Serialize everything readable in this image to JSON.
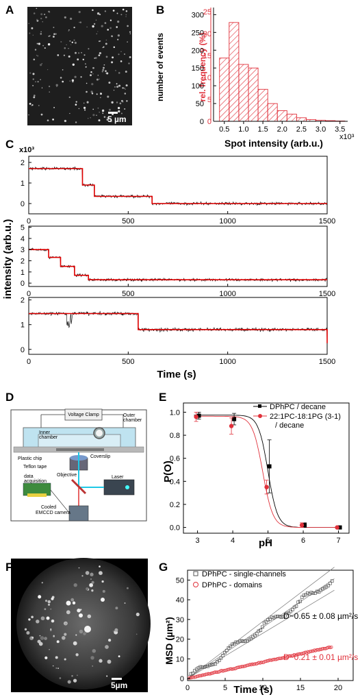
{
  "panels": {
    "A": {
      "label": "A",
      "scale_bar": "5 µm"
    },
    "B": {
      "label": "B",
      "ylabel_left": "number of events",
      "ylabel_right": "rel. frequency (%)",
      "xlabel": "Spot intensity (arb.u.)",
      "x_multiplier": "x10³",
      "x_ticks": [
        "0.5",
        "1.0",
        "1.5",
        "2.0",
        "2.5",
        "3.0",
        "3.5"
      ],
      "y_ticks_left": [
        "0",
        "50",
        "100",
        "150",
        "200",
        "250",
        "300"
      ],
      "y_ticks_right": [
        "0",
        "5",
        "10",
        "15",
        "20",
        "25"
      ],
      "colors": {
        "bars": "#e0303a",
        "right_axis": "#e0303a"
      }
    },
    "C": {
      "label": "C",
      "y_multiplier": "x10³",
      "ylabel": "intensity (arb.u.)",
      "xlabel": "Time (s)",
      "x_ticks": [
        "0",
        "500",
        "1000",
        "1500"
      ],
      "top_y_ticks": [
        "0",
        "1",
        "2"
      ],
      "mid_y_ticks": [
        "0",
        "1",
        "2",
        "3",
        "4",
        "5"
      ],
      "bot_y_ticks": [
        "0",
        "1",
        "2"
      ],
      "colors": {
        "trace": "#000000",
        "fit": "#e00000"
      }
    },
    "D": {
      "label": "D",
      "labels": {
        "voltage_clamp": "Voltage Clamp",
        "outer_chamber": "Outer chamber",
        "inner_chamber": "Inner chamber",
        "plastic_chip": "Plastic chip",
        "coverslip": "Coverslip",
        "teflon_tape": "Teflon tape",
        "objective": "Objective",
        "laser": "Laser",
        "data_acquisition": "data acquisition",
        "camera": "Cooled EMCCD camera"
      }
    },
    "E": {
      "label": "E",
      "ylabel": "P(O)",
      "xlabel": "pH",
      "x_ticks": [
        "3",
        "4",
        "5",
        "6",
        "7"
      ],
      "y_ticks": [
        "0.0",
        "0.2",
        "0.4",
        "0.6",
        "0.8",
        "1.0"
      ],
      "legend": [
        "DPhPC / decane",
        "22:1PC-18:1PG (3-1)",
        "/ decane"
      ],
      "colors": {
        "s1": "#000000",
        "s2": "#e0303a"
      }
    },
    "F": {
      "label": "F",
      "scale_bar": "5µm"
    },
    "G": {
      "label": "G",
      "ylabel": "MSD (µm²)",
      "xlabel": "Time (s)",
      "x_ticks": [
        "0",
        "5",
        "10",
        "15",
        "20"
      ],
      "y_ticks": [
        "0",
        "10",
        "20",
        "30",
        "40",
        "50"
      ],
      "legend": [
        "DPhPC - single-channels",
        "DPhPC - domains"
      ],
      "anno_black": "D~0.65 ± 0.08 µm²/s",
      "anno_red": "D~0.21 ± 0.01 µm²/s",
      "colors": {
        "s1": "#555555",
        "s2": "#e0303a"
      }
    }
  },
  "chart_data": [
    {
      "type": "bar",
      "id": "B",
      "categories": [
        "0.5",
        "0.75",
        "1.0",
        "1.25",
        "1.5",
        "1.75",
        "2.0",
        "2.25",
        "2.5",
        "2.75",
        "3.0",
        "3.25",
        "3.5"
      ],
      "values": [
        178,
        278,
        160,
        150,
        90,
        50,
        30,
        20,
        10,
        5,
        3,
        2,
        1
      ],
      "xlabel": "Spot intensity (arb.u.)",
      "ylabel": "number of events",
      "ylim": [
        0,
        320
      ]
    },
    {
      "type": "line",
      "id": "C-top",
      "x": [
        0,
        250,
        270,
        330,
        620,
        1500
      ],
      "y": [
        1.7,
        1.7,
        0.9,
        0.35,
        0.0,
        0.0
      ],
      "xlim": [
        0,
        1500
      ],
      "ylim": [
        -0.5,
        2.3
      ]
    },
    {
      "type": "line",
      "id": "C-mid",
      "x": [
        0,
        50,
        100,
        160,
        230,
        300,
        1500
      ],
      "y": [
        3.0,
        3.0,
        2.3,
        1.5,
        0.7,
        0.3,
        0.3
      ],
      "xlim": [
        0,
        1500
      ],
      "ylim": [
        -0.3,
        5.1
      ]
    },
    {
      "type": "line",
      "id": "C-bot",
      "x": [
        0,
        250,
        550,
        1500
      ],
      "y": [
        1.45,
        1.45,
        0.8,
        0.25
      ],
      "xlim": [
        0,
        1500
      ],
      "ylim": [
        -0.2,
        2.1
      ]
    },
    {
      "type": "scatter",
      "id": "E",
      "xlabel": "pH",
      "ylabel": "P(O)",
      "xlim": [
        2.6,
        7.3
      ],
      "ylim": [
        -0.05,
        1.08
      ],
      "series": [
        {
          "name": "DPhPC / decane",
          "x": [
            3,
            4,
            5,
            6,
            7
          ],
          "y": [
            0.97,
            0.94,
            0.53,
            0.02,
            0.0
          ],
          "err": [
            0.03,
            0.05,
            0.23,
            0.02,
            0.0
          ]
        },
        {
          "name": "22:1PC-18:1PG (3-1) / decane",
          "x": [
            3,
            4,
            5,
            6,
            7
          ],
          "y": [
            0.96,
            0.88,
            0.35,
            0.02,
            0.0
          ],
          "err": [
            0.04,
            0.07,
            0.06,
            0.02,
            0.0
          ]
        }
      ]
    },
    {
      "type": "scatter",
      "id": "G",
      "xlabel": "Time (s)",
      "ylabel": "MSD (µm²)",
      "xlim": [
        0,
        22
      ],
      "ylim": [
        -1,
        55
      ],
      "series": [
        {
          "name": "DPhPC - single-channels",
          "slope": 2.6
        },
        {
          "name": "DPhPC - domains",
          "slope": 0.84
        }
      ]
    }
  ]
}
